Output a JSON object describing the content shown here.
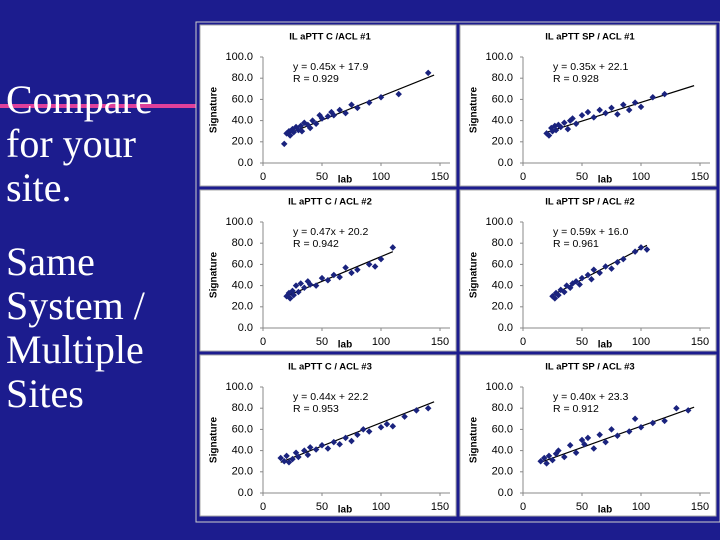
{
  "slide": {
    "paragraphs": [
      {
        "lines": [
          "Compare",
          "for your",
          "site."
        ]
      },
      {
        "lines": [
          "Same",
          "System /",
          "Multiple",
          "Sites"
        ]
      }
    ]
  },
  "chart_data": [
    {
      "type": "scatter",
      "title": "IL aPTT C /ACL #1",
      "xlabel": "lab",
      "ylabel": "Signature",
      "annotations": [
        "y = 0.45x + 17.9",
        "R = 0.929"
      ],
      "x": [
        18,
        20,
        22,
        23,
        25,
        26,
        28,
        30,
        32,
        33,
        35,
        38,
        40,
        42,
        45,
        48,
        50,
        55,
        58,
        60,
        65,
        70,
        75,
        80,
        90,
        100,
        115,
        140
      ],
      "y": [
        18,
        28,
        30,
        26,
        32,
        29,
        34,
        31,
        35,
        30,
        38,
        36,
        33,
        40,
        37,
        45,
        42,
        44,
        48,
        45,
        50,
        47,
        55,
        52,
        57,
        62,
        65,
        85
      ],
      "trendline": {
        "x": [
          20,
          145
        ],
        "y": [
          27,
          83
        ]
      },
      "xlim": [
        0,
        150
      ],
      "ylim": [
        0,
        100
      ],
      "xticks": [
        0,
        50,
        100,
        150
      ],
      "yticks": [
        {
          "value": 0,
          "label": "0.0"
        },
        {
          "value": 20,
          "label": "20.0"
        },
        {
          "value": 40,
          "label": "40.0"
        },
        {
          "value": 60,
          "label": "60.0"
        },
        {
          "value": 80,
          "label": "80.0"
        },
        {
          "value": 100,
          "label": "100.0"
        }
      ],
      "color": "#1a237e"
    },
    {
      "type": "scatter",
      "title": "IL aPTT SP / ACL #1",
      "xlabel": "lab",
      "ylabel": "Signature",
      "annotations": [
        "y = 0.35x + 22.1",
        "R = 0.928"
      ],
      "x": [
        20,
        22,
        24,
        25,
        27,
        28,
        30,
        32,
        35,
        38,
        40,
        42,
        45,
        50,
        55,
        60,
        65,
        70,
        75,
        80,
        85,
        90,
        95,
        100,
        110,
        120
      ],
      "y": [
        28,
        26,
        33,
        30,
        35,
        31,
        36,
        34,
        38,
        32,
        40,
        42,
        37,
        45,
        48,
        43,
        50,
        47,
        52,
        46,
        55,
        50,
        57,
        53,
        62,
        65
      ],
      "trendline": {
        "x": [
          20,
          145
        ],
        "y": [
          29,
          73
        ]
      },
      "xlim": [
        0,
        150
      ],
      "ylim": [
        0,
        100
      ],
      "xticks": [
        0,
        50,
        100,
        150
      ],
      "yticks": [
        {
          "value": 0,
          "label": "0.0"
        },
        {
          "value": 20,
          "label": "20.0"
        },
        {
          "value": 40,
          "label": "40.0"
        },
        {
          "value": 60,
          "label": "60.0"
        },
        {
          "value": 80,
          "label": "80.0"
        },
        {
          "value": 100,
          "label": "100.0"
        }
      ],
      "color": "#1a237e"
    },
    {
      "type": "scatter",
      "title": "IL aPTT C / ACL #2",
      "xlabel": "lab",
      "ylabel": "Signature",
      "annotations": [
        "y = 0.47x + 20.2",
        "R = 0.942"
      ],
      "x": [
        20,
        22,
        23,
        25,
        26,
        28,
        30,
        32,
        35,
        38,
        40,
        45,
        50,
        55,
        60,
        65,
        70,
        75,
        80,
        90,
        95,
        100,
        110
      ],
      "y": [
        30,
        33,
        28,
        35,
        31,
        40,
        34,
        42,
        38,
        44,
        41,
        40,
        47,
        45,
        50,
        48,
        57,
        52,
        55,
        60,
        58,
        65,
        76
      ],
      "trendline": {
        "x": [
          20,
          110
        ],
        "y": [
          30,
          72
        ]
      },
      "xlim": [
        0,
        150
      ],
      "ylim": [
        0,
        100
      ],
      "xticks": [
        0,
        50,
        100,
        150
      ],
      "yticks": [
        {
          "value": 0,
          "label": "0.0"
        },
        {
          "value": 20,
          "label": "20.0"
        },
        {
          "value": 40,
          "label": "40.0"
        },
        {
          "value": 60,
          "label": "60.0"
        },
        {
          "value": 80,
          "label": "80.0"
        },
        {
          "value": 100,
          "label": "100.0"
        }
      ],
      "color": "#1a237e"
    },
    {
      "type": "scatter",
      "title": "IL aPTT SP / ACL #2",
      "xlabel": "lab",
      "ylabel": "Signature",
      "annotations": [
        "y = 0.59x + 16.0",
        "R = 0.961"
      ],
      "x": [
        25,
        27,
        28,
        30,
        32,
        35,
        37,
        40,
        42,
        45,
        48,
        50,
        55,
        58,
        60,
        65,
        70,
        75,
        80,
        85,
        95,
        100,
        105
      ],
      "y": [
        30,
        28,
        33,
        31,
        36,
        34,
        40,
        38,
        42,
        44,
        41,
        47,
        50,
        46,
        55,
        52,
        58,
        56,
        62,
        65,
        72,
        76,
        74
      ],
      "trendline": {
        "x": [
          25,
          105
        ],
        "y": [
          31,
          78
        ]
      },
      "xlim": [
        0,
        150
      ],
      "ylim": [
        0,
        100
      ],
      "xticks": [
        0,
        50,
        100,
        150
      ],
      "yticks": [
        {
          "value": 0,
          "label": "0.0"
        },
        {
          "value": 20,
          "label": "20.0"
        },
        {
          "value": 40,
          "label": "40.0"
        },
        {
          "value": 60,
          "label": "60.0"
        },
        {
          "value": 80,
          "label": "80.0"
        },
        {
          "value": 100,
          "label": "100.0"
        }
      ],
      "color": "#1a237e"
    },
    {
      "type": "scatter",
      "title": "IL aPTT C / ACL #3",
      "xlabel": "lab",
      "ylabel": "Signature",
      "annotations": [
        "y = 0.44x + 22.2",
        "R = 0.953"
      ],
      "x": [
        15,
        18,
        20,
        22,
        25,
        28,
        30,
        35,
        38,
        40,
        45,
        50,
        55,
        60,
        65,
        70,
        75,
        80,
        85,
        90,
        100,
        105,
        110,
        120,
        130,
        140
      ],
      "y": [
        33,
        30,
        35,
        29,
        32,
        38,
        34,
        40,
        36,
        43,
        41,
        45,
        42,
        48,
        46,
        52,
        49,
        55,
        60,
        58,
        62,
        65,
        63,
        72,
        78,
        80
      ],
      "trendline": {
        "x": [
          15,
          145
        ],
        "y": [
          29,
          86
        ]
      },
      "xlim": [
        0,
        150
      ],
      "ylim": [
        0,
        100
      ],
      "xticks": [
        0,
        50,
        100,
        150
      ],
      "yticks": [
        {
          "value": 0,
          "label": "0.0"
        },
        {
          "value": 20,
          "label": "20.0"
        },
        {
          "value": 40,
          "label": "40.0"
        },
        {
          "value": 60,
          "label": "60.0"
        },
        {
          "value": 80,
          "label": "80.0"
        },
        {
          "value": 100,
          "label": "100.0"
        }
      ],
      "color": "#1a237e"
    },
    {
      "type": "scatter",
      "title": "IL aPTT SP / ACL #3",
      "xlabel": "lab",
      "ylabel": "Signature",
      "annotations": [
        "y = 0.40x + 23.3",
        "R = 0.912"
      ],
      "x": [
        15,
        18,
        20,
        22,
        25,
        28,
        30,
        35,
        40,
        45,
        50,
        52,
        55,
        60,
        65,
        70,
        75,
        80,
        90,
        95,
        100,
        110,
        120,
        130,
        140
      ],
      "y": [
        30,
        33,
        28,
        35,
        31,
        37,
        40,
        34,
        45,
        38,
        50,
        46,
        52,
        42,
        55,
        48,
        60,
        54,
        58,
        70,
        62,
        66,
        68,
        80,
        78
      ],
      "trendline": {
        "x": [
          15,
          145
        ],
        "y": [
          29,
          81
        ]
      },
      "xlim": [
        0,
        150
      ],
      "ylim": [
        0,
        100
      ],
      "xticks": [
        0,
        50,
        100,
        150
      ],
      "yticks": [
        {
          "value": 0,
          "label": "0.0"
        },
        {
          "value": 20,
          "label": "20.0"
        },
        {
          "value": 40,
          "label": "40.0"
        },
        {
          "value": 60,
          "label": "60.0"
        },
        {
          "value": 80,
          "label": "80.0"
        },
        {
          "value": 100,
          "label": "100.0"
        }
      ],
      "color": "#1a237e"
    }
  ]
}
